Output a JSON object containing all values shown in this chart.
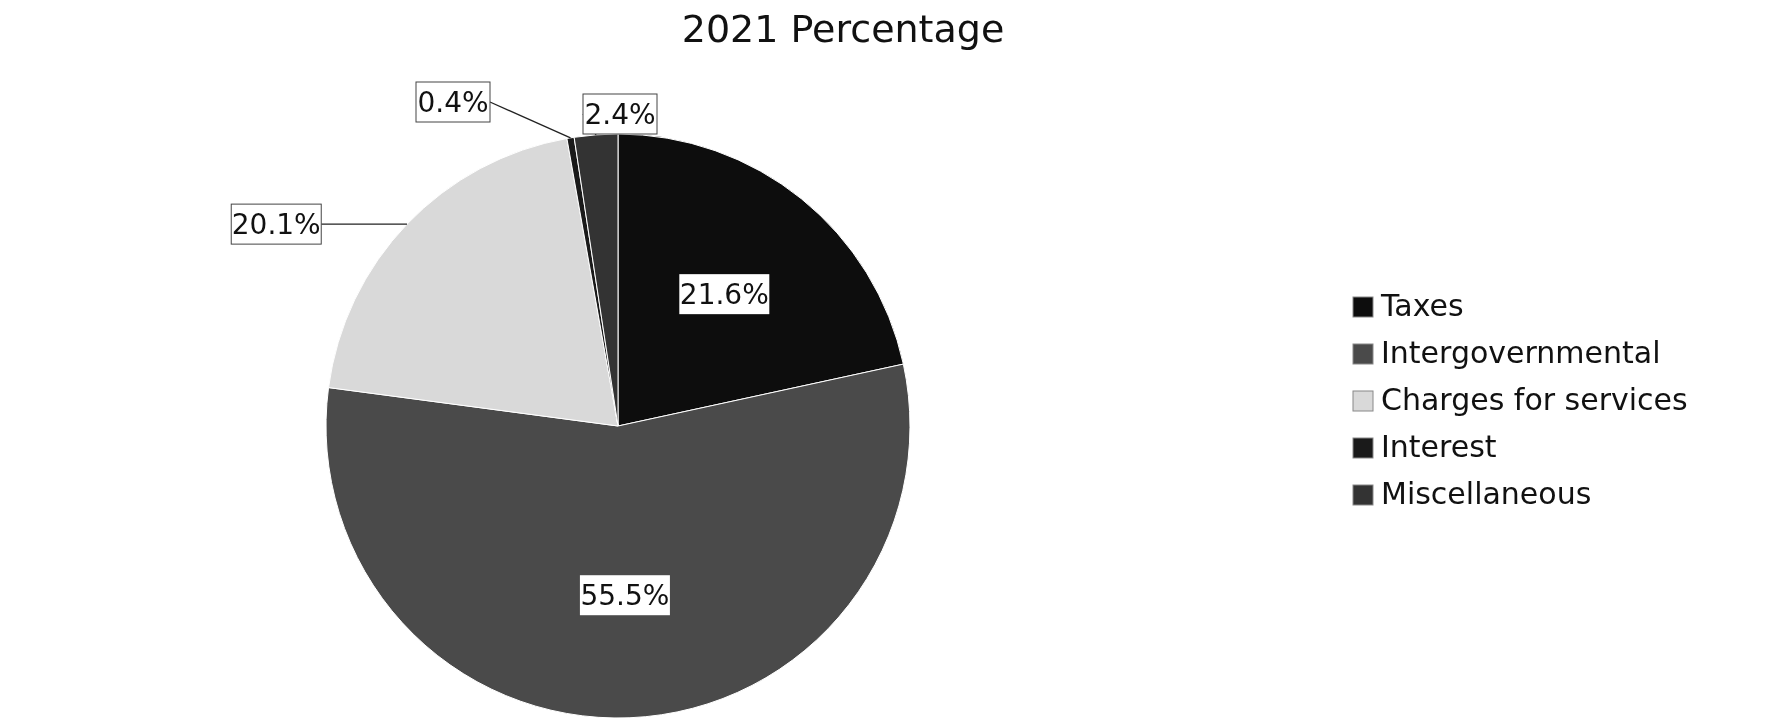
{
  "chart_data": {
    "type": "pie",
    "title": "2021 Percentage",
    "categories": [
      "Taxes",
      "Intergovernmental",
      "Charges for services",
      "Interest",
      "Miscellaneous"
    ],
    "values": [
      21.6,
      55.5,
      20.1,
      0.4,
      2.4
    ],
    "colors": [
      "#0d0d0d",
      "#4a4a4a",
      "#d9d9d9",
      "#1a1a1a",
      "#333333"
    ],
    "value_labels": [
      "21.6%",
      "55.5%",
      "20.1%",
      "0.4%",
      "2.4%"
    ],
    "legend": "right"
  }
}
